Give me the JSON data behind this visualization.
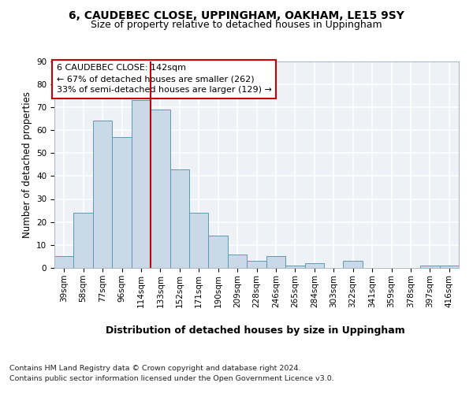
{
  "title1": "6, CAUDEBEC CLOSE, UPPINGHAM, OAKHAM, LE15 9SY",
  "title2": "Size of property relative to detached houses in Uppingham",
  "xlabel": "Distribution of detached houses by size in Uppingham",
  "ylabel": "Number of detached properties",
  "categories": [
    "39sqm",
    "58sqm",
    "77sqm",
    "96sqm",
    "114sqm",
    "133sqm",
    "152sqm",
    "171sqm",
    "190sqm",
    "209sqm",
    "228sqm",
    "246sqm",
    "265sqm",
    "284sqm",
    "303sqm",
    "322sqm",
    "341sqm",
    "359sqm",
    "378sqm",
    "397sqm",
    "416sqm"
  ],
  "values": [
    5,
    24,
    64,
    57,
    73,
    69,
    43,
    24,
    14,
    6,
    3,
    5,
    1,
    2,
    0,
    3,
    0,
    0,
    0,
    1,
    1
  ],
  "bar_color": "#c9d9e8",
  "bar_edge_color": "#5a9ab5",
  "vline_x_idx": 5,
  "vline_color": "#cc0000",
  "annotation_title": "6 CAUDEBEC CLOSE: 142sqm",
  "annotation_line1": "← 67% of detached houses are smaller (262)",
  "annotation_line2": "33% of semi-detached houses are larger (129) →",
  "annotation_box_color": "#ffffff",
  "annotation_box_edge": "#cc0000",
  "footer1": "Contains HM Land Registry data © Crown copyright and database right 2024.",
  "footer2": "Contains public sector information licensed under the Open Government Licence v3.0.",
  "ylim": [
    0,
    90
  ],
  "yticks": [
    0,
    10,
    20,
    30,
    40,
    50,
    60,
    70,
    80,
    90
  ],
  "bg_color": "#eef2f7",
  "grid_color": "#ffffff",
  "title1_fontsize": 10,
  "title2_fontsize": 9,
  "xlabel_fontsize": 9,
  "ylabel_fontsize": 8.5,
  "tick_fontsize": 7.5,
  "annotation_fontsize": 8,
  "footer_fontsize": 6.8
}
